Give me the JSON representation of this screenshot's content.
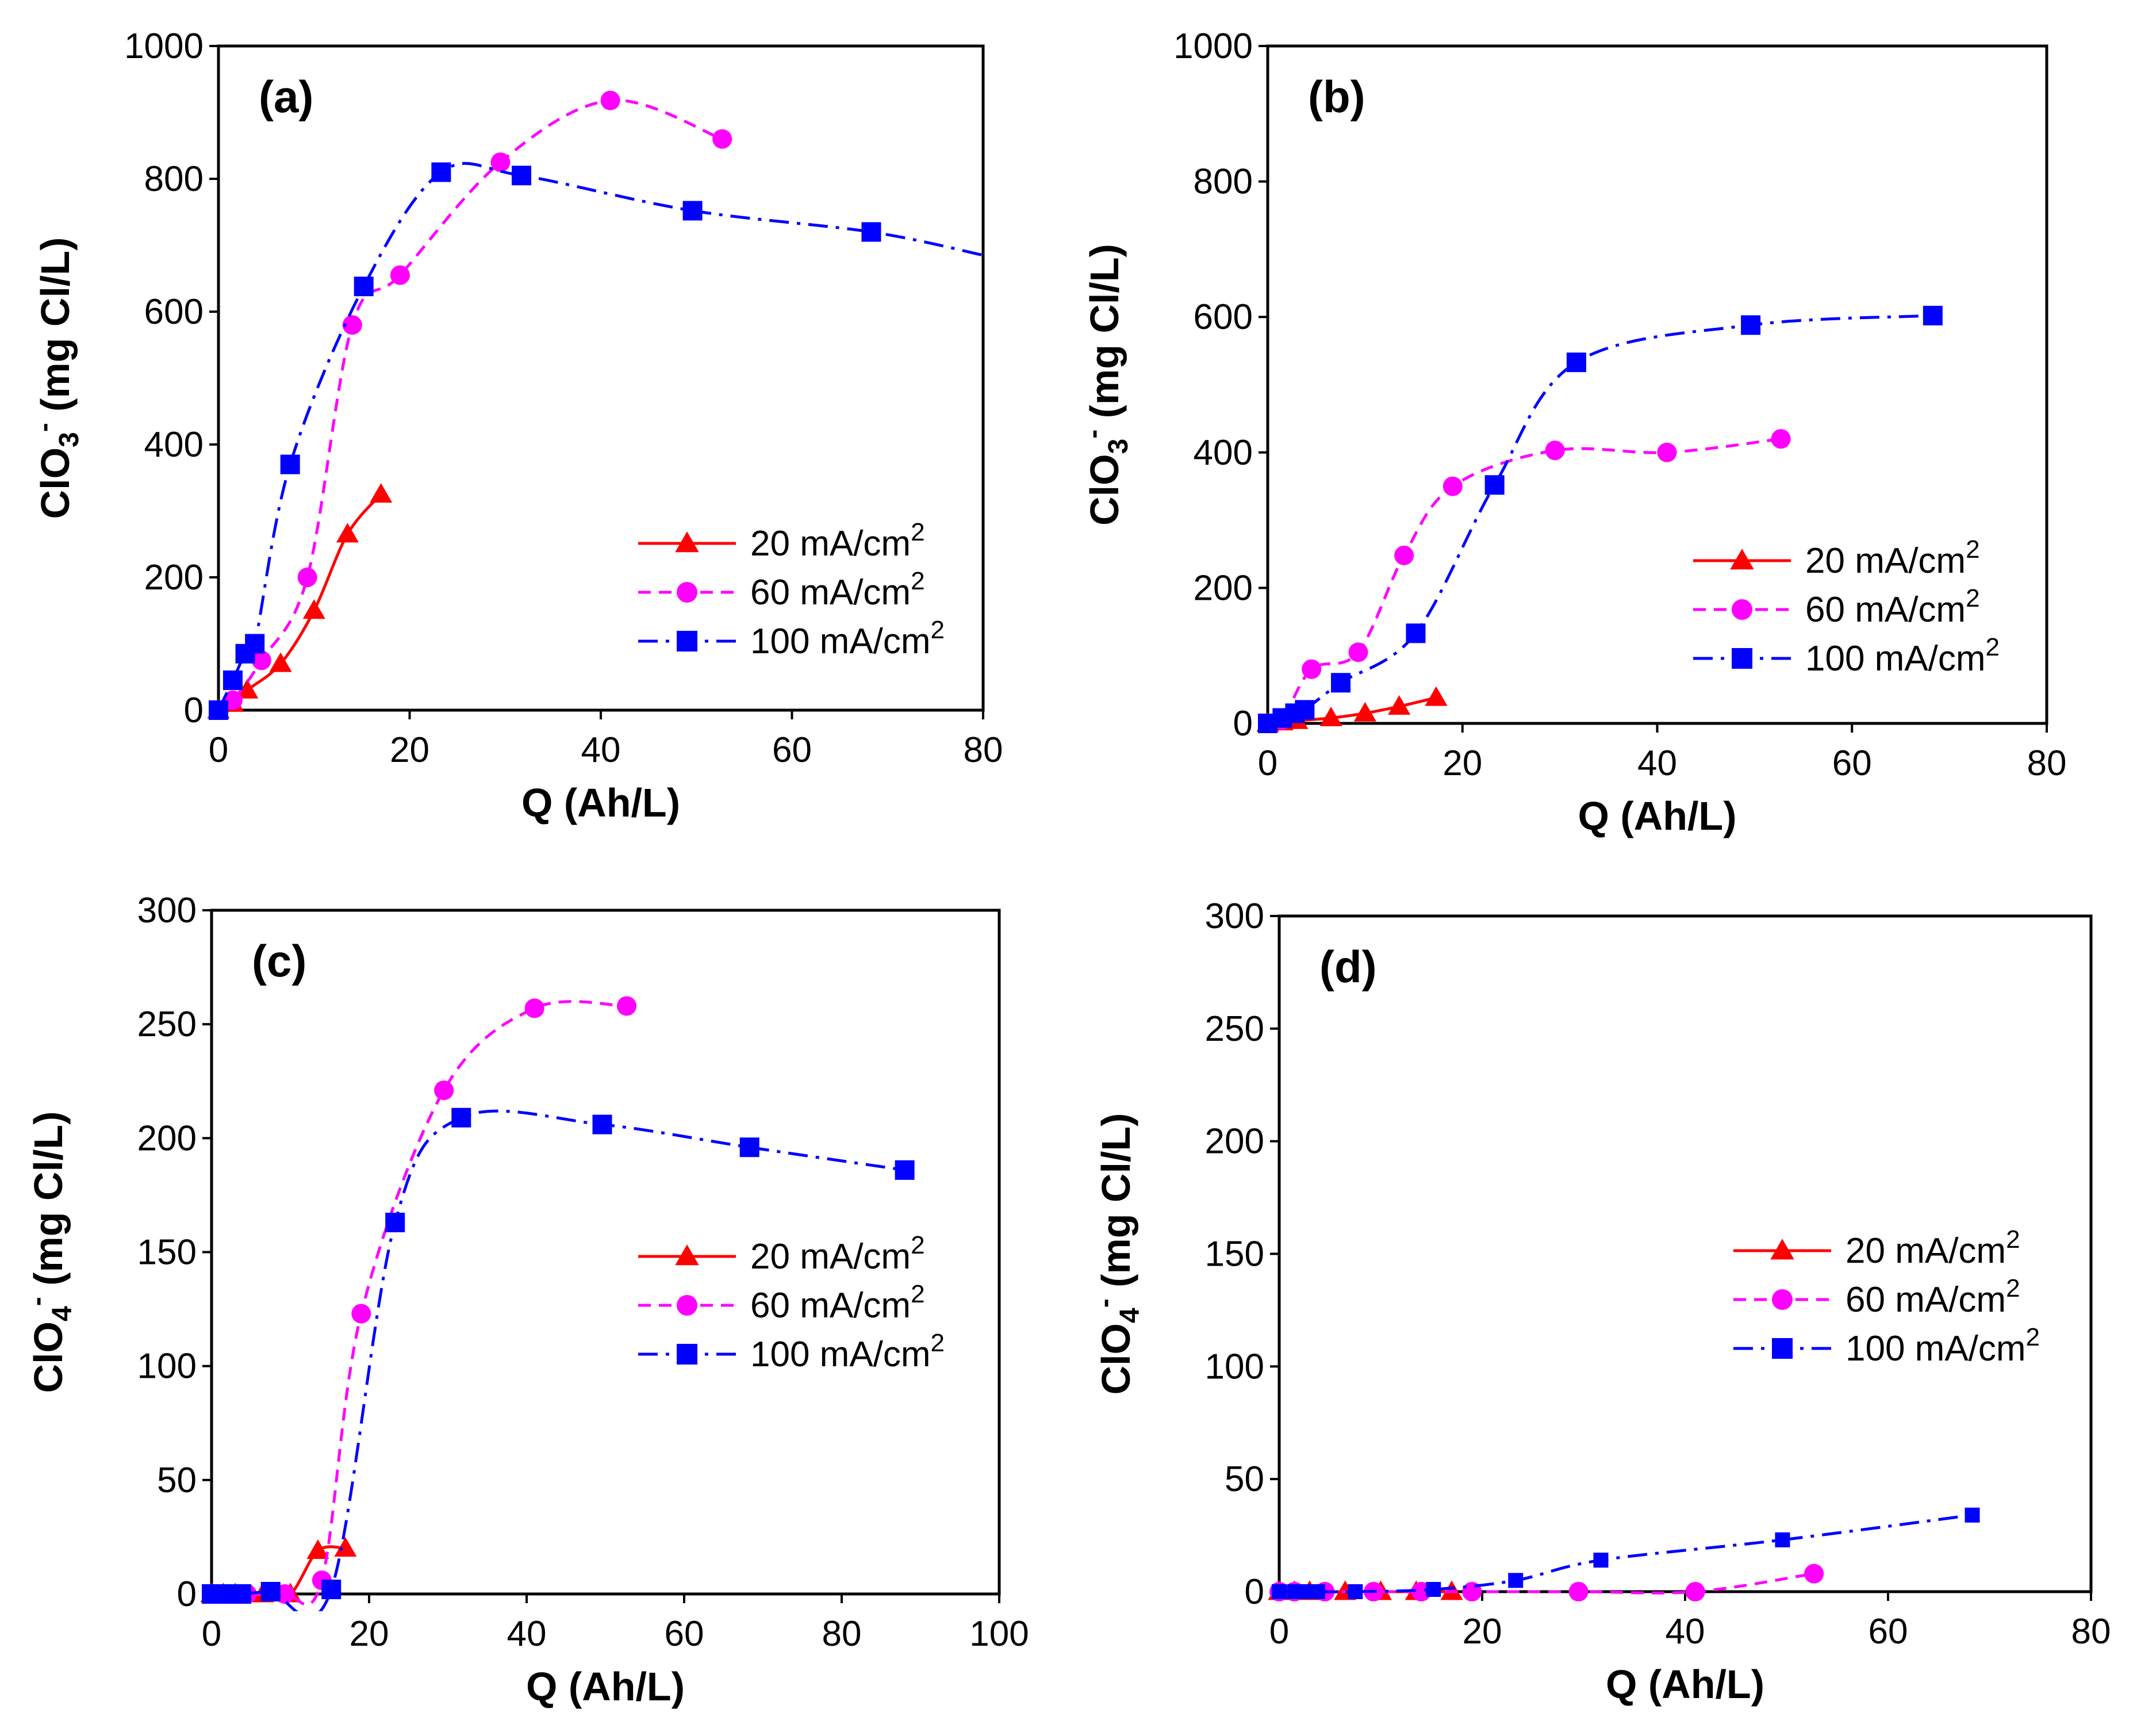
{
  "colors": {
    "series_20": "#ff0000",
    "series_60": "#ff00ff",
    "series_100": "#0000ff",
    "axis": "#000000"
  },
  "chart_data": [
    {
      "panel": "(a)",
      "type": "line",
      "xlabel": "Q (Ah/L)",
      "ylabel_base": "ClO",
      "ylabel_sub": "3",
      "ylabel_sup": "-",
      "ylabel_unit": " (mg Cl/L)",
      "xlim": [
        0,
        80
      ],
      "ylim": [
        0,
        1000
      ],
      "xticks": [
        0,
        20,
        40,
        60,
        80
      ],
      "yticks": [
        0,
        200,
        400,
        600,
        800,
        1000
      ],
      "legend_position": "bottom-right",
      "series": [
        {
          "name": "20 mA/cm",
          "sup": "2",
          "marker": "triangle",
          "line": "solid",
          "color": "#ff0000",
          "x": [
            0,
            1.5,
            3,
            6.5,
            10,
            13.5,
            17
          ],
          "y": [
            0,
            10,
            30,
            70,
            150,
            265,
            325
          ]
        },
        {
          "name": "60 mA/cm",
          "sup": "2",
          "marker": "circle",
          "line": "dash",
          "color": "#ff00ff",
          "x": [
            0,
            1.5,
            4.5,
            9.3,
            14,
            19,
            29.5,
            41,
            52.7
          ],
          "y": [
            0,
            15,
            75,
            200,
            580,
            655,
            825,
            918,
            860
          ]
        },
        {
          "name": "100 mA/cm",
          "sup": "2",
          "marker": "square",
          "line": "dashdot",
          "color": "#0000ff",
          "x": [
            0,
            1.5,
            2.8,
            3.8,
            7.5,
            15.2,
            23.3,
            31.7,
            49.6,
            68.3,
            80
          ],
          "y": [
            0,
            45,
            85,
            100,
            370,
            638,
            810,
            805,
            752,
            720,
            685
          ]
        }
      ]
    },
    {
      "panel": "(b)",
      "type": "line",
      "xlabel": "Q (Ah/L)",
      "ylabel_base": "ClO",
      "ylabel_sub": "3",
      "ylabel_sup": "-",
      "ylabel_unit": " (mg Cl/L)",
      "xlim": [
        0,
        80
      ],
      "ylim": [
        0,
        1000
      ],
      "xticks": [
        0,
        20,
        40,
        60,
        80
      ],
      "yticks": [
        0,
        200,
        400,
        600,
        800,
        1000
      ],
      "legend_position": "bottom-right",
      "series": [
        {
          "name": "20 mA/cm",
          "sup": "2",
          "marker": "triangle",
          "line": "solid",
          "color": "#ff0000",
          "x": [
            0,
            1.5,
            3,
            6.5,
            10,
            13.5,
            17.3
          ],
          "y": [
            0,
            2,
            4,
            8,
            15,
            25,
            38
          ]
        },
        {
          "name": "60 mA/cm",
          "sup": "2",
          "marker": "circle",
          "line": "dash",
          "color": "#ff00ff",
          "x": [
            0,
            1.5,
            4.5,
            9.3,
            14,
            19,
            29.5,
            41,
            52.7
          ],
          "y": [
            0,
            5,
            80,
            105,
            248,
            350,
            403,
            400,
            420
          ]
        },
        {
          "name": "100 mA/cm",
          "sup": "2",
          "marker": "square",
          "line": "dashdot",
          "color": "#0000ff",
          "x": [
            0,
            1.5,
            2.8,
            3.8,
            7.5,
            15.2,
            23.3,
            31.7,
            49.6,
            68.3
          ],
          "y": [
            0,
            8,
            15,
            20,
            60,
            133,
            352,
            533,
            588,
            602
          ]
        }
      ]
    },
    {
      "panel": "(c)",
      "type": "line",
      "xlabel": "Q (Ah/L)",
      "ylabel_base": "ClO",
      "ylabel_sub": "4",
      "ylabel_sup": "-",
      "ylabel_unit": " (mg Cl/L)",
      "xlim": [
        0,
        100
      ],
      "ylim": [
        0,
        300
      ],
      "xticks": [
        0,
        20,
        40,
        60,
        80,
        100
      ],
      "yticks": [
        0,
        50,
        100,
        150,
        200,
        250,
        300
      ],
      "legend_position": "right",
      "series": [
        {
          "name": "20 mA/cm",
          "sup": "2",
          "marker": "triangle",
          "line": "solid",
          "color": "#ff0000",
          "x": [
            0,
            1.5,
            3,
            6.5,
            10,
            13.5,
            17
          ],
          "y": [
            0,
            0,
            0,
            0,
            0,
            19,
            20
          ]
        },
        {
          "name": "60 mA/cm",
          "sup": "2",
          "marker": "circle",
          "line": "dash",
          "color": "#ff00ff",
          "x": [
            0,
            1.5,
            4.5,
            9.3,
            14,
            19,
            29.5,
            41,
            52.7
          ],
          "y": [
            0,
            0,
            0,
            0,
            6,
            123,
            221,
            257,
            258
          ]
        },
        {
          "name": "100 mA/cm",
          "sup": "2",
          "marker": "square",
          "line": "dashdot",
          "color": "#0000ff",
          "x": [
            0,
            1.5,
            2.8,
            3.8,
            7.5,
            15.2,
            23.3,
            31.7,
            49.6,
            68.3,
            88
          ],
          "y": [
            0,
            0,
            0,
            0,
            1,
            2,
            163,
            209,
            206,
            196,
            186
          ]
        }
      ]
    },
    {
      "panel": "(d)",
      "type": "line",
      "xlabel": "Q (Ah/L)",
      "ylabel_base": "ClO",
      "ylabel_sub": "4",
      "ylabel_sup": "-",
      "ylabel_unit": " (mg Cl/L)",
      "xlim": [
        0,
        80
      ],
      "ylim": [
        0,
        300
      ],
      "xticks": [
        0,
        20,
        40,
        60,
        80
      ],
      "yticks": [
        0,
        50,
        100,
        150,
        200,
        250,
        300
      ],
      "legend_position": "right",
      "series": [
        {
          "name": "20 mA/cm",
          "sup": "2",
          "marker": "triangle",
          "line": "solid",
          "color": "#ff0000",
          "x": [
            0,
            1.5,
            3,
            6.5,
            10,
            13.5,
            17
          ],
          "y": [
            0,
            0,
            0,
            0,
            0,
            0,
            0
          ]
        },
        {
          "name": "60 mA/cm",
          "sup": "2",
          "marker": "circle",
          "line": "dash",
          "color": "#ff00ff",
          "x": [
            0,
            1.5,
            4.5,
            9.3,
            14,
            19,
            29.5,
            41,
            52.7
          ],
          "y": [
            0,
            0,
            0,
            0,
            0,
            0,
            0,
            0,
            8
          ]
        },
        {
          "name": "100 mA/cm",
          "sup": "2",
          "marker": "square",
          "line": "dashdot",
          "color": "#0000ff",
          "x": [
            0,
            1.5,
            2.8,
            3.8,
            7.5,
            15.2,
            23.3,
            31.7,
            49.6,
            68.3
          ],
          "y": [
            0,
            0,
            0,
            0,
            0,
            1,
            5,
            14,
            23,
            34
          ]
        }
      ]
    }
  ]
}
